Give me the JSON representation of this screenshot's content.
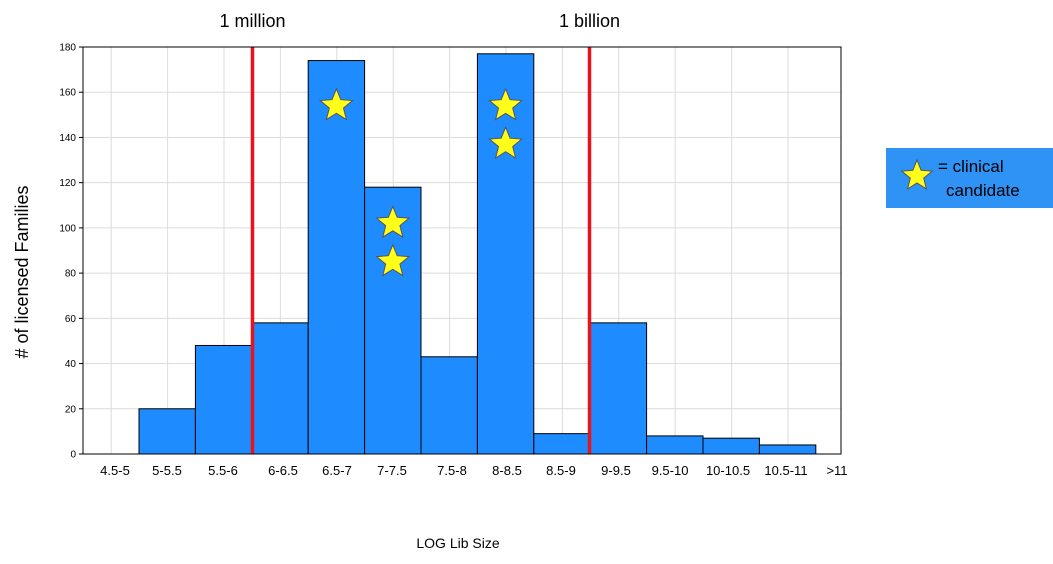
{
  "chart_data": {
    "type": "bar",
    "xlabel": "LOG Lib Size",
    "ylabel": "# of licensed Families",
    "ylim": [
      0,
      180
    ],
    "yticks": [
      0,
      20,
      40,
      60,
      80,
      100,
      120,
      140,
      160,
      180
    ],
    "categories": [
      "4.5-5",
      "5-5.5",
      "5.5-6",
      "6-6.5",
      "6.5-7",
      "7-7.5",
      "7.5-8",
      "8-8.5",
      "8.5-9",
      "9-9.5",
      "9.5-10",
      "10-10.5",
      "10.5-11",
      ">11"
    ],
    "values": [
      0,
      20,
      48,
      58,
      174,
      118,
      43,
      177,
      9,
      58,
      8,
      7,
      4,
      0
    ],
    "bar_color": "#1e8cff",
    "grid": true,
    "reference_lines": [
      {
        "label": "1 million",
        "between": [
          "5.5-6",
          "6-6.5"
        ],
        "color": "#e8141c"
      },
      {
        "label": "1 billion",
        "between": [
          "8.5-9",
          "9-9.5"
        ],
        "color": "#e8141c"
      }
    ],
    "stars": [
      {
        "category": "6.5-7",
        "y": 154
      },
      {
        "category": "7-7.5",
        "y": 102
      },
      {
        "category": "7-7.5",
        "y": 85
      },
      {
        "category": "8-8.5",
        "y": 154
      },
      {
        "category": "8-8.5",
        "y": 137
      }
    ],
    "star_color": "#ffff1a",
    "legend": {
      "position": "right",
      "line1": "= clinical",
      "line2": "candidate",
      "background": "#2f92f5"
    }
  }
}
